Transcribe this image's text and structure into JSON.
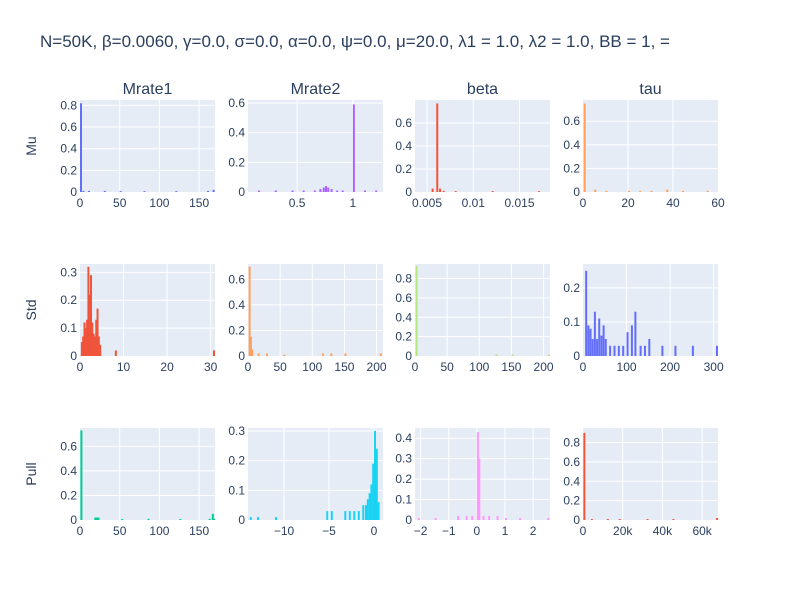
{
  "title": "N=50K, β=0.0060, γ=0.0, σ=0.0,  α=0.0, ψ=0.0, μ=20.0, λ1 = 1.0, λ2 = 1.0, BB = 1, =",
  "colors": {
    "plot_bg": "#e5ecf6",
    "grid": "#ffffff",
    "text": "#2a3f5f"
  },
  "chart_data": [
    {
      "type": "bar",
      "row": "Mu",
      "column": "Mrate1",
      "color": "#636efa",
      "xlim": [
        0,
        170
      ],
      "ylim": [
        0,
        0.85
      ],
      "xticks": [
        {
          "v": 0,
          "l": "0"
        },
        {
          "v": 50,
          "l": "50"
        },
        {
          "v": 100,
          "l": "100"
        },
        {
          "v": 150,
          "l": "150"
        }
      ],
      "yticks": [
        {
          "v": 0,
          "l": "0"
        },
        {
          "v": 0.2,
          "l": "0.2"
        },
        {
          "v": 0.4,
          "l": "0.4"
        },
        {
          "v": 0.6,
          "l": "0.6"
        },
        {
          "v": 0.8,
          "l": "0.8"
        }
      ],
      "bin_width": 1.7,
      "bars": [
        [
          0,
          0.82
        ],
        [
          3,
          0.01
        ],
        [
          10,
          0.01
        ],
        [
          30,
          0.01
        ],
        [
          50,
          0.008
        ],
        [
          80,
          0.008
        ],
        [
          120,
          0.008
        ],
        [
          160,
          0.01
        ],
        [
          167,
          0.02
        ]
      ]
    },
    {
      "type": "bar",
      "row": "Mu",
      "column": "Mrate2",
      "color": "#ab63fa",
      "xlim": [
        0.06,
        1.27
      ],
      "ylim": [
        0,
        0.62
      ],
      "xticks": [
        {
          "v": 0.5,
          "l": "0.5"
        },
        {
          "v": 1,
          "l": "1"
        }
      ],
      "yticks": [
        {
          "v": 0,
          "l": "0"
        },
        {
          "v": 0.2,
          "l": "0.2"
        },
        {
          "v": 0.4,
          "l": "0.4"
        },
        {
          "v": 0.6,
          "l": "0.6"
        }
      ],
      "bin_width": 0.012,
      "bars": [
        [
          0.15,
          0.01
        ],
        [
          0.3,
          0.01
        ],
        [
          0.45,
          0.01
        ],
        [
          0.55,
          0.01
        ],
        [
          0.65,
          0.01
        ],
        [
          0.7,
          0.02
        ],
        [
          0.73,
          0.03
        ],
        [
          0.75,
          0.04
        ],
        [
          0.77,
          0.03
        ],
        [
          0.8,
          0.02
        ],
        [
          0.85,
          0.01
        ],
        [
          0.9,
          0.01
        ],
        [
          1.0,
          0.59
        ],
        [
          1.1,
          0.01
        ],
        [
          1.2,
          0.01
        ]
      ]
    },
    {
      "type": "bar",
      "row": "Mu",
      "column": "beta",
      "color": "#ef553b",
      "xlim": [
        0.0037,
        0.0183
      ],
      "ylim": [
        0,
        0.8
      ],
      "xticks": [
        {
          "v": 0.005,
          "l": "0.005"
        },
        {
          "v": 0.01,
          "l": "0.01"
        },
        {
          "v": 0.015,
          "l": "0.015"
        }
      ],
      "yticks": [
        {
          "v": 0,
          "l": "0"
        },
        {
          "v": 0.2,
          "l": "0.2"
        },
        {
          "v": 0.4,
          "l": "0.4"
        },
        {
          "v": 0.6,
          "l": "0.6"
        }
      ],
      "bin_width": 0.00015,
      "bars": [
        [
          0.0055,
          0.03
        ],
        [
          0.006,
          0.77
        ],
        [
          0.0063,
          0.03
        ],
        [
          0.0067,
          0.01
        ],
        [
          0.008,
          0.008
        ],
        [
          0.012,
          0.008
        ],
        [
          0.017,
          0.008
        ]
      ]
    },
    {
      "type": "bar",
      "row": "Mu",
      "column": "tau",
      "color": "#ffa15a",
      "xlim": [
        0,
        60
      ],
      "ylim": [
        0,
        0.78
      ],
      "xticks": [
        {
          "v": 0,
          "l": "0"
        },
        {
          "v": 20,
          "l": "20"
        },
        {
          "v": 40,
          "l": "40"
        },
        {
          "v": 60,
          "l": "60"
        }
      ],
      "yticks": [
        {
          "v": 0,
          "l": "0"
        },
        {
          "v": 0.2,
          "l": "0.2"
        },
        {
          "v": 0.4,
          "l": "0.4"
        },
        {
          "v": 0.6,
          "l": "0.6"
        }
      ],
      "bin_width": 0.6,
      "bars": [
        [
          0.3,
          0.75
        ],
        [
          5,
          0.02
        ],
        [
          10,
          0.01
        ],
        [
          20,
          0.01
        ],
        [
          25,
          0.01
        ],
        [
          30,
          0.01
        ],
        [
          37,
          0.02
        ],
        [
          44,
          0.01
        ],
        [
          55,
          0.01
        ]
      ]
    },
    {
      "type": "bar",
      "row": "Std",
      "column": "Mrate1",
      "color": "#ef553b",
      "xlim": [
        0,
        31
      ],
      "ylim": [
        0,
        0.33
      ],
      "xticks": [
        {
          "v": 0,
          "l": "0"
        },
        {
          "v": 10,
          "l": "10"
        },
        {
          "v": 20,
          "l": "20"
        },
        {
          "v": 30,
          "l": "30"
        }
      ],
      "yticks": [
        {
          "v": 0,
          "l": "0"
        },
        {
          "v": 0.1,
          "l": "0.1"
        },
        {
          "v": 0.2,
          "l": "0.2"
        },
        {
          "v": 0.3,
          "l": "0.3"
        }
      ],
      "bin_width": 0.31,
      "bars": [
        [
          0.2,
          0.05
        ],
        [
          0.5,
          0.07
        ],
        [
          0.8,
          0.12
        ],
        [
          1.1,
          0.1
        ],
        [
          1.4,
          0.13
        ],
        [
          1.7,
          0.32
        ],
        [
          2.0,
          0.22
        ],
        [
          2.3,
          0.29
        ],
        [
          2.6,
          0.12
        ],
        [
          2.9,
          0.08
        ],
        [
          3.2,
          0.07
        ],
        [
          3.5,
          0.13
        ],
        [
          3.8,
          0.17
        ],
        [
          4.1,
          0.07
        ],
        [
          4.4,
          0.04
        ],
        [
          8.0,
          0.02
        ],
        [
          30.8,
          0.02
        ]
      ]
    },
    {
      "type": "bar",
      "row": "Std",
      "column": "Mrate2",
      "color": "#ffa15a",
      "xlim": [
        0,
        210
      ],
      "ylim": [
        0,
        0.72
      ],
      "xticks": [
        {
          "v": 0,
          "l": "0"
        },
        {
          "v": 50,
          "l": "50"
        },
        {
          "v": 100,
          "l": "100"
        },
        {
          "v": 150,
          "l": "150"
        },
        {
          "v": 200,
          "l": "200"
        }
      ],
      "yticks": [
        {
          "v": 0,
          "l": "0"
        },
        {
          "v": 0.2,
          "l": "0.2"
        },
        {
          "v": 0.4,
          "l": "0.4"
        },
        {
          "v": 0.6,
          "l": "0.6"
        }
      ],
      "bin_width": 2.1,
      "bars": [
        [
          1,
          0.7
        ],
        [
          3,
          0.15
        ],
        [
          5,
          0.05
        ],
        [
          15,
          0.02
        ],
        [
          28,
          0.02
        ],
        [
          55,
          0.01
        ],
        [
          115,
          0.02
        ],
        [
          128,
          0.02
        ],
        [
          150,
          0.02
        ],
        [
          205,
          0.02
        ]
      ]
    },
    {
      "type": "bar",
      "row": "Std",
      "column": "beta",
      "color": "#b6e880",
      "xlim": [
        0,
        210
      ],
      "ylim": [
        0,
        0.95
      ],
      "xticks": [
        {
          "v": 0,
          "l": "0"
        },
        {
          "v": 50,
          "l": "50"
        },
        {
          "v": 100,
          "l": "100"
        },
        {
          "v": 150,
          "l": "150"
        },
        {
          "v": 200,
          "l": "200"
        }
      ],
      "yticks": [
        {
          "v": 0,
          "l": "0"
        },
        {
          "v": 0.2,
          "l": "0.2"
        },
        {
          "v": 0.4,
          "l": "0.4"
        },
        {
          "v": 0.6,
          "l": "0.6"
        },
        {
          "v": 0.8,
          "l": "0.8"
        }
      ],
      "bin_width": 2.1,
      "bars": [
        [
          1,
          0.93
        ],
        [
          125,
          0.015
        ],
        [
          150,
          0.015
        ],
        [
          208,
          0.015
        ]
      ]
    },
    {
      "type": "bar",
      "row": "Std",
      "column": "tau",
      "color": "#636efa",
      "xlim": [
        0,
        310
      ],
      "ylim": [
        0,
        0.27
      ],
      "xticks": [
        {
          "v": 0,
          "l": "0"
        },
        {
          "v": 100,
          "l": "100"
        },
        {
          "v": 200,
          "l": "200"
        },
        {
          "v": 300,
          "l": "300"
        }
      ],
      "yticks": [
        {
          "v": 0,
          "l": "0"
        },
        {
          "v": 0.1,
          "l": "0.1"
        },
        {
          "v": 0.2,
          "l": "0.2"
        }
      ],
      "bin_width": 3.1,
      "bars": [
        [
          5,
          0.25
        ],
        [
          10,
          0.09
        ],
        [
          15,
          0.08
        ],
        [
          20,
          0.05
        ],
        [
          25,
          0.13
        ],
        [
          30,
          0.05
        ],
        [
          35,
          0.11
        ],
        [
          40,
          0.06
        ],
        [
          45,
          0.09
        ],
        [
          50,
          0.05
        ],
        [
          60,
          0.03
        ],
        [
          70,
          0.03
        ],
        [
          80,
          0.03
        ],
        [
          90,
          0.03
        ],
        [
          100,
          0.07
        ],
        [
          110,
          0.09
        ],
        [
          118,
          0.13
        ],
        [
          130,
          0.03
        ],
        [
          140,
          0.03
        ],
        [
          150,
          0.05
        ],
        [
          180,
          0.03
        ],
        [
          210,
          0.03
        ],
        [
          250,
          0.03
        ],
        [
          310,
          0.03
        ]
      ]
    },
    {
      "type": "bar",
      "row": "Pull",
      "column": "Mrate1",
      "color": "#00cc96",
      "xlim": [
        0,
        170
      ],
      "ylim": [
        0,
        0.75
      ],
      "xticks": [
        {
          "v": 0,
          "l": "0"
        },
        {
          "v": 50,
          "l": "50"
        },
        {
          "v": 100,
          "l": "100"
        },
        {
          "v": 150,
          "l": "150"
        }
      ],
      "yticks": [
        {
          "v": 0,
          "l": "0"
        },
        {
          "v": 0.2,
          "l": "0.2"
        },
        {
          "v": 0.4,
          "l": "0.4"
        },
        {
          "v": 0.6,
          "l": "0.6"
        }
      ],
      "bin_width": 1.7,
      "bars": [
        [
          0.5,
          0.73
        ],
        [
          18,
          0.02
        ],
        [
          20,
          0.02
        ],
        [
          22,
          0.02
        ],
        [
          52,
          0.008
        ],
        [
          85,
          0.01
        ],
        [
          125,
          0.008
        ],
        [
          162,
          0.01
        ],
        [
          166,
          0.05
        ],
        [
          169,
          0.01
        ]
      ]
    },
    {
      "type": "bar",
      "row": "Pull",
      "column": "Mrate2",
      "color": "#19d3f3",
      "xlim": [
        -14,
        1
      ],
      "ylim": [
        0,
        0.31
      ],
      "xticks": [
        {
          "v": -10,
          "l": "−10"
        },
        {
          "v": -5,
          "l": "−5"
        },
        {
          "v": 0,
          "l": "0"
        }
      ],
      "yticks": [
        {
          "v": 0,
          "l": "0"
        },
        {
          "v": 0.1,
          "l": "0.1"
        },
        {
          "v": 0.2,
          "l": "0.2"
        },
        {
          "v": 0.3,
          "l": "0.3"
        }
      ],
      "bin_width": 0.15,
      "bars": [
        [
          -13.8,
          0.01
        ],
        [
          -13,
          0.01
        ],
        [
          -11,
          0.01
        ],
        [
          -5.3,
          0.03
        ],
        [
          -4.8,
          0.03
        ],
        [
          -3.3,
          0.03
        ],
        [
          -2.8,
          0.03
        ],
        [
          -2.3,
          0.03
        ],
        [
          -1.8,
          0.03
        ],
        [
          -1.3,
          0.05
        ],
        [
          -1.0,
          0.05
        ],
        [
          -0.8,
          0.07
        ],
        [
          -0.6,
          0.09
        ],
        [
          -0.4,
          0.12
        ],
        [
          -0.2,
          0.19
        ],
        [
          0,
          0.3
        ],
        [
          0.2,
          0.24
        ],
        [
          0.4,
          0.06
        ]
      ]
    },
    {
      "type": "bar",
      "row": "Pull",
      "column": "beta",
      "color": "#ff97ff",
      "xlim": [
        -2.2,
        2.6
      ],
      "ylim": [
        0,
        0.45
      ],
      "xticks": [
        {
          "v": -2,
          "l": "−2"
        },
        {
          "v": -1,
          "l": "−1"
        },
        {
          "v": 0,
          "l": "0"
        },
        {
          "v": 1,
          "l": "1"
        },
        {
          "v": 2,
          "l": "2"
        }
      ],
      "yticks": [
        {
          "v": 0,
          "l": "0"
        },
        {
          "v": 0.1,
          "l": "0.1"
        },
        {
          "v": 0.2,
          "l": "0.2"
        },
        {
          "v": 0.3,
          "l": "0.3"
        },
        {
          "v": 0.4,
          "l": "0.4"
        }
      ],
      "bin_width": 0.048,
      "bars": [
        [
          -2.1,
          0.01
        ],
        [
          -1.5,
          0.01
        ],
        [
          -0.7,
          0.02
        ],
        [
          -0.4,
          0.02
        ],
        [
          -0.2,
          0.02
        ],
        [
          0,
          0.43
        ],
        [
          0.05,
          0.3
        ],
        [
          0.2,
          0.02
        ],
        [
          0.4,
          0.02
        ],
        [
          0.7,
          0.02
        ],
        [
          1.0,
          0.01
        ],
        [
          1.5,
          0.01
        ],
        [
          2.5,
          0.01
        ]
      ]
    },
    {
      "type": "bar",
      "row": "Pull",
      "column": "tau",
      "color": "#ef553b",
      "xlim": [
        0,
        68000
      ],
      "ylim": [
        0,
        0.95
      ],
      "xticks": [
        {
          "v": 0,
          "l": "0"
        },
        {
          "v": 20000,
          "l": "20k"
        },
        {
          "v": 40000,
          "l": "40k"
        },
        {
          "v": 60000,
          "l": "60k"
        }
      ],
      "yticks": [
        {
          "v": 0,
          "l": "0"
        },
        {
          "v": 0.2,
          "l": "0.2"
        },
        {
          "v": 0.4,
          "l": "0.4"
        },
        {
          "v": 0.6,
          "l": "0.6"
        },
        {
          "v": 0.8,
          "l": "0.8"
        }
      ],
      "bin_width": 500,
      "bars": [
        [
          200,
          0.9
        ],
        [
          4000,
          0.01
        ],
        [
          12000,
          0.01
        ],
        [
          18000,
          0.01
        ],
        [
          32000,
          0.01
        ],
        [
          45000,
          0.01
        ],
        [
          67500,
          0.02
        ]
      ]
    }
  ],
  "column_titles": [
    "Mrate1",
    "Mrate2",
    "beta",
    "tau"
  ],
  "row_titles": [
    "Mu",
    "Std",
    "Pull"
  ]
}
